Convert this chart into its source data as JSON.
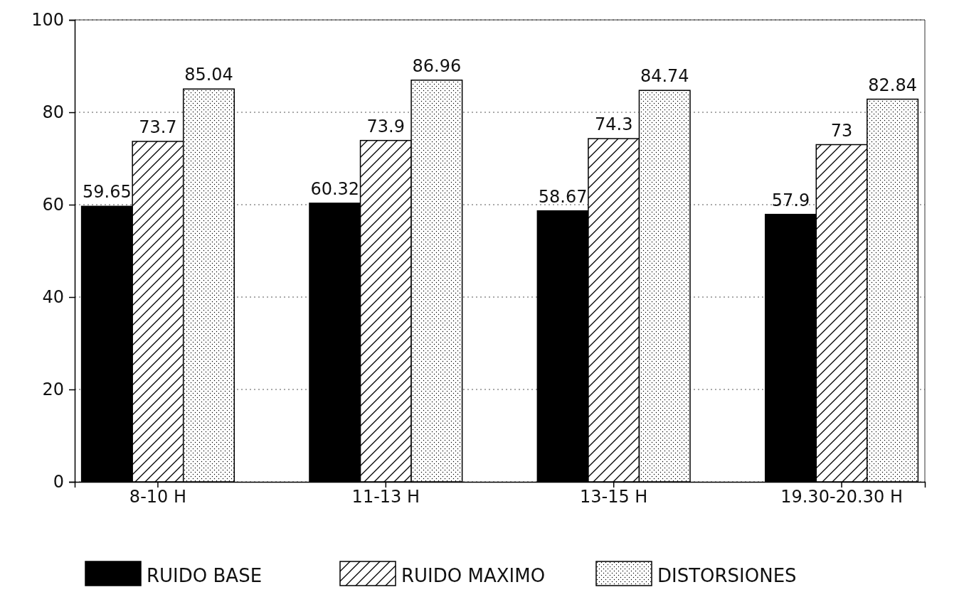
{
  "chart_data": {
    "type": "bar",
    "categories": [
      "8-10 H",
      "11-13 H",
      "13-15 H",
      "19.30-20.30 H"
    ],
    "series": [
      {
        "name": "RUIDO BASE",
        "color": "#000000",
        "values": [
          59.65,
          60.32,
          58.67,
          57.9
        ]
      },
      {
        "name": "RUIDO MAXIMO",
        "color": "#000000",
        "values": [
          73.7,
          73.9,
          74.3,
          73
        ]
      },
      {
        "name": "DISTORSIONES",
        "color": "#000000",
        "values": [
          85.04,
          86.96,
          84.74,
          82.84
        ]
      }
    ],
    "ylim": [
      0,
      100
    ],
    "yticks": [
      0,
      20,
      40,
      60,
      80,
      100
    ],
    "grid": "y",
    "legend": "bottom",
    "data_labels": true
  }
}
